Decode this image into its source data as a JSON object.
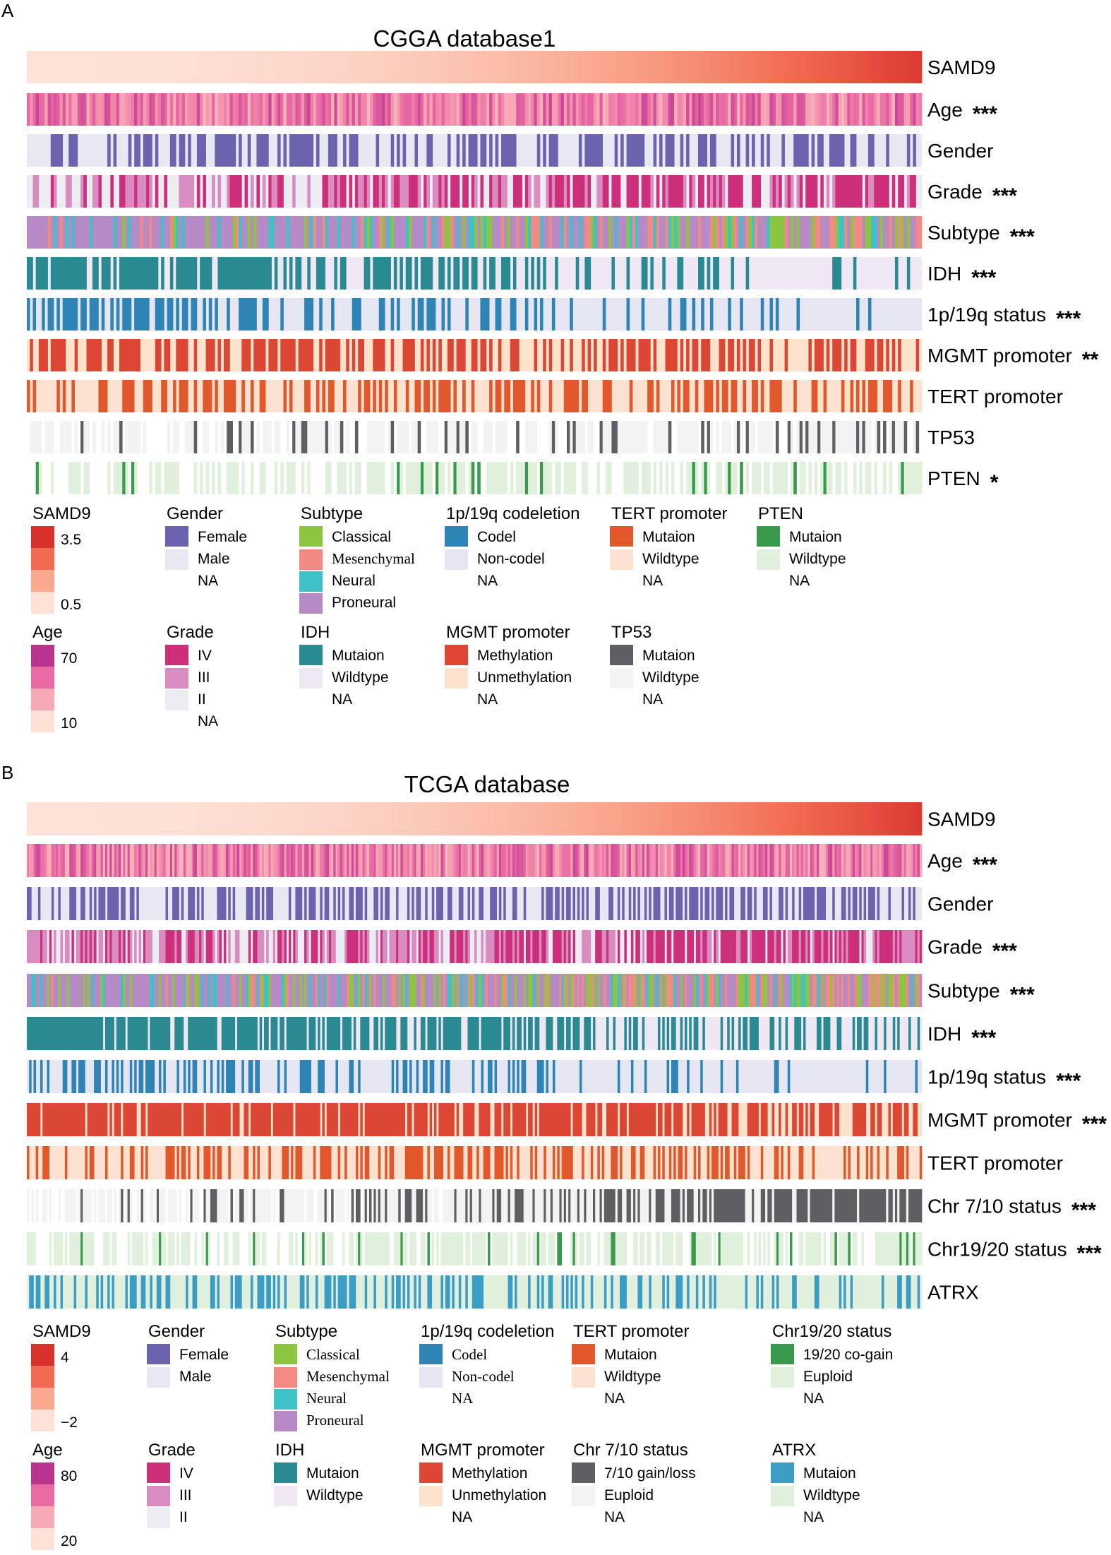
{
  "chart_data": {
    "type": "heatmap",
    "panels": [
      {
        "letter": "A",
        "title": "CGGA database1",
        "n_samples": 300,
        "sort_by": "SAMD9",
        "rows": [
          {
            "key": "samd9",
            "label": "SAMD9",
            "sig": "",
            "kind": "gradient",
            "palette": "samd9",
            "profile": "sorted",
            "range": [
              0.5,
              3.5
            ]
          },
          {
            "key": "age",
            "label": "Age",
            "sig": "***",
            "kind": "gradient",
            "palette": "age",
            "profile": "age",
            "range": [
              10,
              70
            ]
          },
          {
            "key": "gender",
            "label": "Gender",
            "sig": "",
            "kind": "binary",
            "colors": [
              "#6c63ae",
              "#e8e8f2"
            ],
            "probs": [
              0.45,
              0.45
            ]
          },
          {
            "key": "grade",
            "label": "Grade",
            "sig": "***",
            "kind": "cat3",
            "colors": [
              "#cd2f7b",
              "#d88cc0",
              "#ececf3"
            ],
            "probs": [
              [
                0.25,
                0.35,
                0.4
              ],
              [
                0.6,
                0.15,
                0.25
              ]
            ]
          },
          {
            "key": "subtype",
            "label": "Subtype",
            "sig": "***",
            "kind": "cat4",
            "colors": [
              "#8cc640",
              "#f08a83",
              "#3fc1c8",
              "#b68ac4"
            ],
            "probs": [
              [
                0.04,
                0.06,
                0.25,
                0.65
              ],
              [
                0.25,
                0.3,
                0.08,
                0.37
              ]
            ]
          },
          {
            "key": "idh",
            "label": "IDH",
            "sig": "***",
            "kind": "trend",
            "colors": [
              "#2a8a92",
              "#efe8f3"
            ],
            "probs": [
              0.88,
              0.12
            ]
          },
          {
            "key": "codel",
            "label": "1p/19q status",
            "sig": "***",
            "kind": "trend",
            "colors": [
              "#2f84b6",
              "#e5e6f2"
            ],
            "probs": [
              0.55,
              0.02
            ]
          },
          {
            "key": "mgmt",
            "label": "MGMT promoter",
            "sig": "**",
            "kind": "trend",
            "colors": [
              "#dc4735",
              "#fde3cc"
            ],
            "probs": [
              0.6,
              0.45
            ]
          },
          {
            "key": "tert",
            "label": "TERT promoter",
            "sig": "",
            "kind": "binary",
            "colors": [
              "#e2572c",
              "#fde2cf"
            ],
            "probs": [
              0.45,
              0.45
            ]
          },
          {
            "key": "tp53",
            "label": "TP53",
            "sig": "",
            "kind": "sparse",
            "colors": [
              "#5f5f63",
              "#f3f3f3",
              "#ffffff"
            ],
            "probs": [
              0.1,
              0.25
            ]
          },
          {
            "key": "pten",
            "label": "PTEN",
            "sig": "*",
            "kind": "sparse",
            "colors": [
              "#3a9a4c",
              "#e1f0dd",
              "#ffffff"
            ],
            "probs": [
              0.02,
              0.1
            ]
          }
        ],
        "legends": [
          {
            "title": "SAMD9",
            "type": "gradient",
            "palette": "samd9",
            "labels": [
              "3.5",
              "0.5"
            ]
          },
          {
            "title": "Gender",
            "type": "swatches",
            "colors": [
              "#6c63ae",
              "#e8e8f2",
              "#ffffff"
            ],
            "items": [
              "Female",
              "Male",
              "NA"
            ]
          },
          {
            "title": "Subtype",
            "type": "swatches",
            "colors": [
              "#8cc640",
              "#f08a83",
              "#3fc1c8",
              "#b68ac4"
            ],
            "items": [
              "Classical",
              "Mesenchymal",
              "Neural",
              "Proneural"
            ],
            "serif": [
              1
            ]
          },
          {
            "title": "1p/19q codeletion",
            "type": "swatches",
            "colors": [
              "#2f84b6",
              "#e5e6f2",
              "#ffffff"
            ],
            "items": [
              "Codel",
              "Non-codel",
              "NA"
            ]
          },
          {
            "title": "TERT promoter",
            "type": "swatches",
            "colors": [
              "#e2572c",
              "#fde2cf",
              "#ffffff"
            ],
            "items": [
              "Mutaion",
              "Wildtype",
              "NA"
            ]
          },
          {
            "title": "PTEN",
            "type": "swatches",
            "colors": [
              "#3a9a4c",
              "#e1f0dd",
              "#ffffff"
            ],
            "items": [
              "Mutaion",
              "Wildtype",
              "NA"
            ]
          },
          {
            "title": "Age",
            "type": "gradient",
            "palette": "age",
            "labels": [
              "70",
              "10"
            ]
          },
          {
            "title": "Grade",
            "type": "swatches",
            "colors": [
              "#cd2f7b",
              "#d88cc0",
              "#ececf3",
              "#ffffff"
            ],
            "items": [
              "IV",
              "III",
              "II",
              "NA"
            ]
          },
          {
            "title": "IDH",
            "type": "swatches",
            "colors": [
              "#2a8a92",
              "#efe8f3",
              "#ffffff"
            ],
            "items": [
              "Mutaion",
              "Wildtype",
              "NA"
            ]
          },
          {
            "title": "MGMT promoter",
            "type": "swatches",
            "colors": [
              "#dc4735",
              "#fde3cc",
              "#ffffff"
            ],
            "items": [
              "Methylation",
              "Unmethylation",
              "NA"
            ]
          },
          {
            "title": "TP53",
            "type": "swatches",
            "colors": [
              "#5f5f63",
              "#f3f3f3",
              "#ffffff"
            ],
            "items": [
              "Mutaion",
              "Wildtype",
              "NA"
            ]
          }
        ]
      },
      {
        "letter": "B",
        "title": "TCGA database",
        "n_samples": 400,
        "sort_by": "SAMD9",
        "rows": [
          {
            "key": "samd9",
            "label": "SAMD9",
            "sig": "",
            "kind": "gradient",
            "palette": "samd9",
            "profile": "sorted",
            "range": [
              -2,
              4
            ]
          },
          {
            "key": "age",
            "label": "Age",
            "sig": "***",
            "kind": "gradient",
            "palette": "age",
            "profile": "age",
            "range": [
              20,
              80
            ]
          },
          {
            "key": "gender",
            "label": "Gender",
            "sig": "",
            "kind": "binary",
            "colors": [
              "#6c63ae",
              "#e8e8f2"
            ],
            "probs": [
              0.5,
              0.5
            ]
          },
          {
            "key": "grade",
            "label": "Grade",
            "sig": "***",
            "kind": "cat3",
            "colors": [
              "#cd2f7b",
              "#d88cc0",
              "#ececf3"
            ],
            "probs": [
              [
                0.15,
                0.45,
                0.4
              ],
              [
                0.65,
                0.25,
                0.1
              ]
            ]
          },
          {
            "key": "subtype",
            "label": "Subtype",
            "sig": "***",
            "kind": "cat4",
            "colors": [
              "#8cc640",
              "#f08a83",
              "#3fc1c8",
              "#b68ac4"
            ],
            "probs": [
              [
                0.05,
                0.05,
                0.15,
                0.75
              ],
              [
                0.4,
                0.25,
                0.1,
                0.25
              ]
            ]
          },
          {
            "key": "idh",
            "label": "IDH",
            "sig": "***",
            "kind": "trend",
            "colors": [
              "#2a8a92",
              "#efe8f3"
            ],
            "probs": [
              0.95,
              0.3
            ]
          },
          {
            "key": "codel",
            "label": "1p/19q status",
            "sig": "***",
            "kind": "trend",
            "colors": [
              "#2f84b6",
              "#e5e6f2"
            ],
            "probs": [
              0.45,
              0.05
            ]
          },
          {
            "key": "mgmt",
            "label": "MGMT promoter",
            "sig": "***",
            "kind": "trend",
            "colors": [
              "#dc4735",
              "#fde3cc"
            ],
            "probs": [
              0.92,
              0.6
            ]
          },
          {
            "key": "tert",
            "label": "TERT promoter",
            "sig": "",
            "kind": "binary",
            "colors": [
              "#e2572c",
              "#fde2cf"
            ],
            "probs": [
              0.35,
              0.35
            ]
          },
          {
            "key": "chr710",
            "label": "Chr 7/10 status",
            "sig": "***",
            "kind": "sparse",
            "colors": [
              "#5f5f63",
              "#f3f3f3",
              "#ffffff"
            ],
            "probs": [
              0.02,
              0.75
            ]
          },
          {
            "key": "chr1920",
            "label": "Chr19/20 status",
            "sig": "***",
            "kind": "sparse",
            "colors": [
              "#3a9a4c",
              "#e1f0dd",
              "#ffffff"
            ],
            "probs": [
              0.01,
              0.12
            ]
          },
          {
            "key": "atrx",
            "label": "ATRX",
            "sig": "",
            "kind": "binary",
            "colors": [
              "#3b9cc4",
              "#e1f0dd"
            ],
            "probs": [
              0.4,
              0.3
            ]
          }
        ],
        "legends": [
          {
            "title": "SAMD9",
            "type": "gradient",
            "palette": "samd9",
            "labels": [
              "4",
              "−2"
            ]
          },
          {
            "title": "Gender",
            "type": "swatches",
            "colors": [
              "#6c63ae",
              "#e8e8f2"
            ],
            "items": [
              "Female",
              "Male"
            ]
          },
          {
            "title": "Subtype",
            "type": "swatches",
            "colors": [
              "#8cc640",
              "#f08a83",
              "#3fc1c8",
              "#b68ac4"
            ],
            "items": [
              "Classical",
              "Mesenchymal",
              "Neural",
              "Proneural"
            ],
            "serif": [
              0,
              1,
              2,
              3
            ]
          },
          {
            "title": "1p/19q codeletion",
            "type": "swatches",
            "colors": [
              "#2f84b6",
              "#e5e6f2",
              "#ffffff"
            ],
            "items": [
              "Codel",
              "Non-codel",
              "NA"
            ],
            "serif": [
              0,
              1,
              2
            ]
          },
          {
            "title": "TERT promoter",
            "type": "swatches",
            "colors": [
              "#e2572c",
              "#fde2cf",
              "#ffffff"
            ],
            "items": [
              "Mutaion",
              "Wildtype",
              "NA"
            ]
          },
          {
            "title": "Chr19/20 status",
            "type": "swatches",
            "colors": [
              "#3a9a4c",
              "#e1f0dd",
              "#ffffff"
            ],
            "items": [
              "19/20 co-gain",
              "Euploid",
              "NA"
            ]
          },
          {
            "title": "Age",
            "type": "gradient",
            "palette": "age",
            "labels": [
              "80",
              "20"
            ]
          },
          {
            "title": "Grade",
            "type": "swatches",
            "colors": [
              "#cd2f7b",
              "#d88cc0",
              "#ececf3"
            ],
            "items": [
              "IV",
              "III",
              "II"
            ]
          },
          {
            "title": "IDH",
            "type": "swatches",
            "colors": [
              "#2a8a92",
              "#efe8f3"
            ],
            "items": [
              "Mutaion",
              "Wildtype"
            ]
          },
          {
            "title": "MGMT promoter",
            "type": "swatches",
            "colors": [
              "#dc4735",
              "#fde3cc",
              "#ffffff"
            ],
            "items": [
              "Methylation",
              "Unmethylation",
              "NA"
            ]
          },
          {
            "title": "Chr 7/10 status",
            "type": "swatches",
            "colors": [
              "#5f5f63",
              "#f3f3f3",
              "#ffffff"
            ],
            "items": [
              "7/10 gain/loss",
              "Euploid",
              "NA"
            ]
          },
          {
            "title": "ATRX",
            "type": "swatches",
            "colors": [
              "#3b9cc4",
              "#e1f0dd",
              "#ffffff"
            ],
            "items": [
              "Mutaion",
              "Wildtype",
              "NA"
            ]
          }
        ]
      }
    ],
    "palettes": {
      "samd9": [
        "#fde2d8",
        "#f9a990",
        "#f26a52",
        "#d7322b"
      ],
      "age": [
        "#fde2d8",
        "#f7a9b6",
        "#ea6aa3",
        "#b8358e"
      ]
    }
  }
}
